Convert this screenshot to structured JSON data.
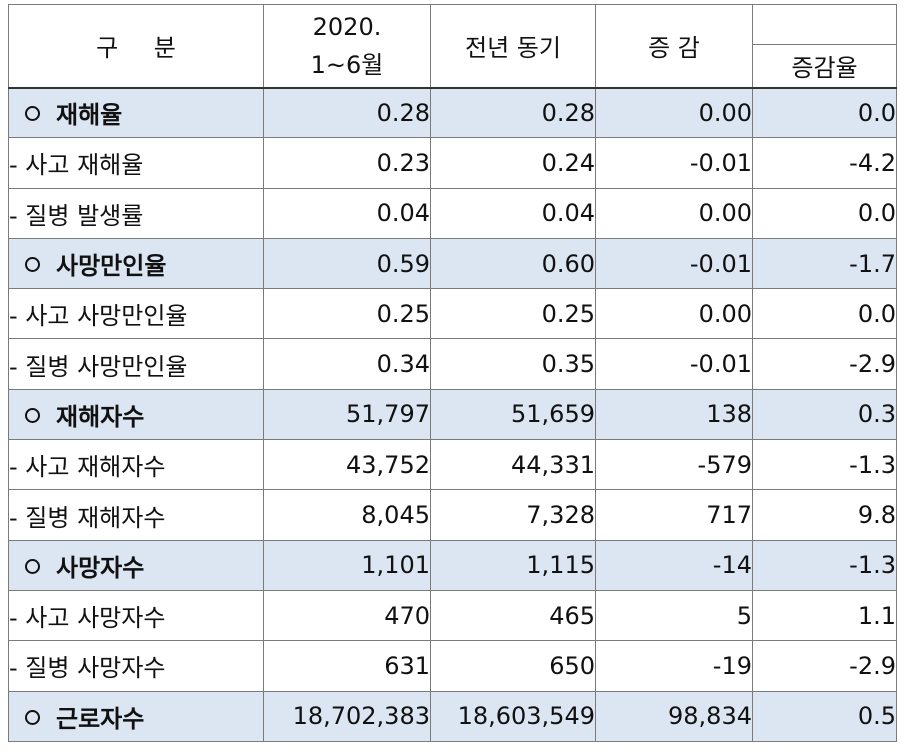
{
  "header": {
    "category": "구 분",
    "period_line1": "2020.",
    "period_line2": "1~6월",
    "prev_year": "전년 동기",
    "change": "증 감",
    "change_rate": "증감율"
  },
  "rows": [
    {
      "type": "main",
      "label": "재해율",
      "current": "0.28",
      "prev": "0.28",
      "change": "0.00",
      "rate": "0.0"
    },
    {
      "type": "sub",
      "label": "- 사고 재해율",
      "current": "0.23",
      "prev": "0.24",
      "change": "-0.01",
      "rate": "-4.2"
    },
    {
      "type": "sub",
      "label": "- 질병 발생률",
      "current": "0.04",
      "prev": "0.04",
      "change": "0.00",
      "rate": "0.0"
    },
    {
      "type": "main",
      "label": "사망만인율",
      "current": "0.59",
      "prev": "0.60",
      "change": "-0.01",
      "rate": "-1.7"
    },
    {
      "type": "sub",
      "label": "- 사고 사망만인율",
      "current": "0.25",
      "prev": "0.25",
      "change": "0.00",
      "rate": "0.0"
    },
    {
      "type": "sub",
      "label": "- 질병 사망만인율",
      "current": "0.34",
      "prev": "0.35",
      "change": "-0.01",
      "rate": "-2.9"
    },
    {
      "type": "main",
      "label": "재해자수",
      "current": "51,797",
      "prev": "51,659",
      "change": "138",
      "rate": "0.3"
    },
    {
      "type": "sub",
      "label": "- 사고 재해자수",
      "current": "43,752",
      "prev": "44,331",
      "change": "-579",
      "rate": "-1.3"
    },
    {
      "type": "sub",
      "label": "- 질병 재해자수",
      "current": "8,045",
      "prev": "7,328",
      "change": "717",
      "rate": "9.8"
    },
    {
      "type": "main",
      "label": "사망자수",
      "current": "1,101",
      "prev": "1,115",
      "change": "-14",
      "rate": "-1.3"
    },
    {
      "type": "sub",
      "label": "- 사고 사망자수",
      "current": "470",
      "prev": "465",
      "change": "5",
      "rate": "1.1"
    },
    {
      "type": "sub",
      "label": "- 질병 사망자수",
      "current": "631",
      "prev": "650",
      "change": "-19",
      "rate": "-2.9"
    },
    {
      "type": "main",
      "label": "근로자수",
      "current": "18,702,383",
      "prev": "18,603,549",
      "change": "98,834",
      "rate": "0.5"
    }
  ],
  "colors": {
    "main_row_bg": "#dce6f2",
    "border": "#7a7a7a"
  },
  "icons": {
    "main_bullet": "circle-bullet-icon"
  }
}
